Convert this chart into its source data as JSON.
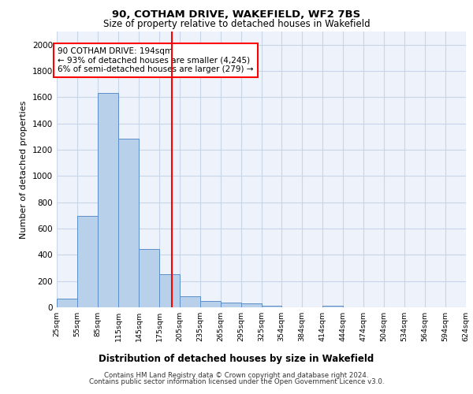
{
  "title1": "90, COTHAM DRIVE, WAKEFIELD, WF2 7BS",
  "title2": "Size of property relative to detached houses in Wakefield",
  "xlabel": "Distribution of detached houses by size in Wakefield",
  "ylabel": "Number of detached properties",
  "bar_color": "#b8d0ea",
  "bar_edge_color": "#5b8fc9",
  "grid_color": "#c8d4e8",
  "annotation_text": "90 COTHAM DRIVE: 194sqm\n← 93% of detached houses are smaller (4,245)\n6% of semi-detached houses are larger (279) →",
  "property_line_x": 194,
  "property_line_color": "red",
  "footer1": "Contains HM Land Registry data © Crown copyright and database right 2024.",
  "footer2": "Contains public sector information licensed under the Open Government Licence v3.0.",
  "bins": [
    25,
    55,
    85,
    115,
    145,
    175,
    205,
    235,
    265,
    295,
    325,
    354,
    384,
    414,
    444,
    474,
    504,
    534,
    564,
    594,
    624
  ],
  "counts": [
    65,
    695,
    1635,
    1285,
    445,
    255,
    85,
    50,
    35,
    28,
    15,
    0,
    0,
    15,
    0,
    0,
    0,
    0,
    0,
    0
  ],
  "ylim": [
    0,
    2100
  ],
  "yticks": [
    0,
    200,
    400,
    600,
    800,
    1000,
    1200,
    1400,
    1600,
    1800,
    2000
  ],
  "background_color": "#eef2fb"
}
